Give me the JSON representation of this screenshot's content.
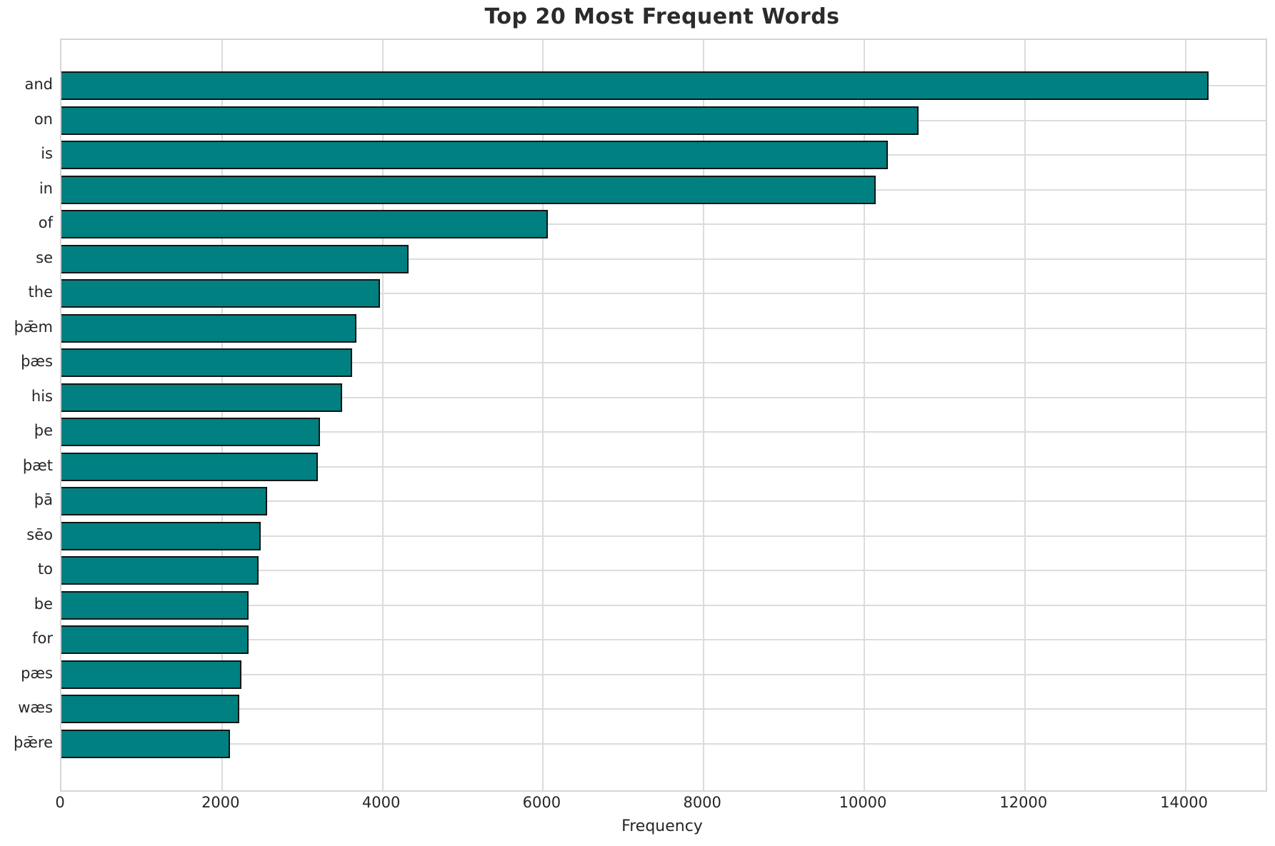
{
  "title": "Top 20 Most Frequent Words",
  "chart_data": {
    "type": "bar",
    "orientation": "horizontal",
    "title": "Top 20 Most Frequent Words",
    "xlabel": "Frequency",
    "ylabel": "",
    "categories": [
      "and",
      "on",
      "is",
      "in",
      "of",
      "se",
      "the",
      "þǣm",
      "þæs",
      "his",
      "þe",
      "þæt",
      "þā",
      "sēo",
      "to",
      "be",
      "for",
      "pæs",
      "wæs",
      "þǣre"
    ],
    "values": [
      14290,
      10680,
      10290,
      10140,
      6060,
      4320,
      3970,
      3670,
      3620,
      3500,
      3220,
      3190,
      2560,
      2480,
      2455,
      2335,
      2330,
      2240,
      2215,
      2100
    ],
    "xlim": [
      0,
      15000
    ],
    "xticks": [
      0,
      2000,
      4000,
      6000,
      8000,
      10000,
      12000,
      14000
    ],
    "grid": true,
    "legend": null
  },
  "colors": {
    "bar_fill": "#008080",
    "bar_edge": "#141414",
    "grid": "#dcdcdc",
    "spine": "#d5d5d5",
    "title_text": "#2b2b2b",
    "tick_text": "#262626"
  }
}
